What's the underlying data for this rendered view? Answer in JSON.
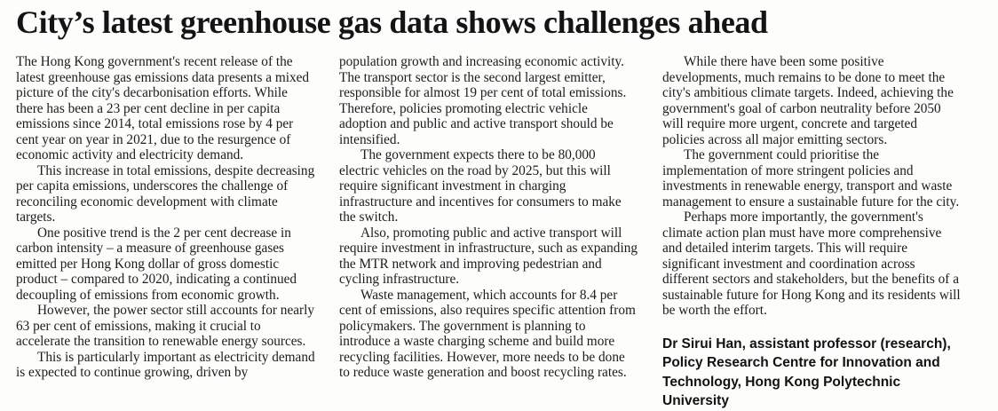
{
  "page": {
    "headline": "City’s latest greenhouse gas data shows challenges ahead",
    "columns": [
      {
        "paragraphs": [
          {
            "text": "The Hong Kong government's recent release of the latest greenhouse gas emissions data presents a mixed picture of the city's decarbonisation efforts. While there has been a 23 per cent decline in per capita emissions since 2014, total emissions rose by 4 per cent year on year in 2021, due to the resurgence of economic activity and electricity demand.",
            "indent": false
          },
          {
            "text": "This increase in total emissions, despite decreasing per capita emissions, underscores the challenge of reconciling economic development with climate targets.",
            "indent": true
          },
          {
            "text": "One positive trend is the 2 per cent decrease in carbon intensity – a measure of greenhouse gases emitted per Hong Kong dollar of gross domestic product – compared to 2020, indicating a continued decoupling of emissions from economic growth.",
            "indent": true
          },
          {
            "text": "However, the power sector still accounts for nearly 63 per cent of emissions, making it crucial to accelerate the transition to renewable energy sources.",
            "indent": true
          },
          {
            "text": "This is particularly important as electricity demand is expected to continue growing, driven by",
            "indent": true
          }
        ]
      },
      {
        "paragraphs": [
          {
            "text": "population growth and increasing economic activity. The transport sector is the second largest emitter, responsible for almost 19 per cent of total emissions. Therefore, policies promoting electric vehicle adoption and public and active transport should be intensified.",
            "indent": false
          },
          {
            "text": "The government expects there to be 80,000 electric vehicles on the road by 2025, but this will require significant investment in charging infrastructure and incentives for consumers to make the switch.",
            "indent": true
          },
          {
            "text": "Also, promoting public and active transport will require investment in infrastructure, such as expanding the MTR network and improving pedestrian and cycling infrastructure.",
            "indent": true
          },
          {
            "text": "Waste management, which accounts for 8.4 per cent of emissions, also requires specific attention from policymakers. The government is planning to introduce a waste charging scheme and build more recycling facilities. However, more needs to be done to reduce waste generation and boost recycling rates.",
            "indent": true
          }
        ]
      },
      {
        "paragraphs": [
          {
            "text": "While there have been some positive developments, much remains to be done to meet the city's ambitious climate targets. Indeed, achieving the government's goal of carbon neutrality before 2050 will require more urgent, concrete and targeted policies across all major emitting sectors.",
            "indent": true
          },
          {
            "text": "The government could prioritise the implementation of more stringent policies and investments in renewable energy, transport and waste management to ensure a sustainable future for the city.",
            "indent": true
          },
          {
            "text": "Perhaps more importantly, the government's climate action plan must have more comprehensive and detailed interim targets. This will require significant investment and coordination across different sectors and stakeholders, but the benefits of a sustainable future for Hong Kong and its residents will be worth the effort.",
            "indent": true
          }
        ]
      }
    ],
    "byline": "Dr Sirui Han, assistant professor (research), Policy Research Centre for Innovation and Technology, Hong Kong Polytechnic University",
    "colors": {
      "background": "#fdfdfc",
      "text": "#1c1c1c",
      "headline": "#141414",
      "byline": "#121212"
    }
  }
}
